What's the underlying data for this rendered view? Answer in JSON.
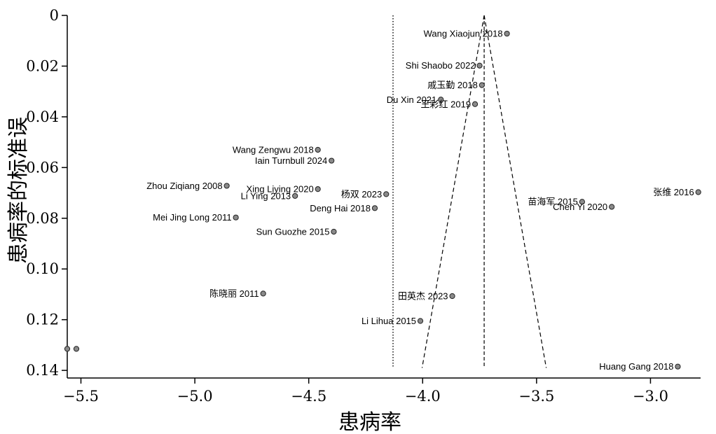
{
  "chart_data": {
    "type": "scatter",
    "title": "",
    "xlabel": "患病率",
    "ylabel": "患病率的标准误",
    "xlim": [
      -5.56,
      -2.78
    ],
    "ylim": [
      0,
      0.143
    ],
    "y_reversed": true,
    "grid": false,
    "x_ticks": [
      -5.5,
      -5.0,
      -4.5,
      -4.0,
      -3.5,
      -3.0
    ],
    "x_tick_labels": [
      "−5.5",
      "−5.0",
      "−4.5",
      "−4.0",
      "−3.5",
      "−3.0"
    ],
    "y_ticks": [
      0,
      0.02,
      0.04,
      0.06,
      0.08,
      0.1,
      0.12,
      0.14
    ],
    "y_tick_labels": [
      "0",
      "0.02",
      "0.04",
      "0.06",
      "0.08",
      "0.10",
      "0.12",
      "0.14"
    ],
    "fixed_effect_line": -4.13,
    "pooled_estimate": -3.73,
    "funnel_bottom_se": 0.139,
    "points": [
      {
        "label": "Wang Xiaojun 2018",
        "x": -3.63,
        "y": 0.0072
      },
      {
        "label": "Shi Shaobo 2022",
        "x": -3.75,
        "y": 0.0198
      },
      {
        "label": "戚玉勤 2018",
        "x": -3.74,
        "y": 0.0275
      },
      {
        "label": "Du Xin 2021",
        "x": -3.92,
        "y": 0.0332
      },
      {
        "label": "王彩红 2019",
        "x": -3.77,
        "y": 0.035
      },
      {
        "label": "Wang Zengwu 2018",
        "x": -4.46,
        "y": 0.053
      },
      {
        "label": "Iain Turnbull 2024",
        "x": -4.4,
        "y": 0.0573
      },
      {
        "label": "Zhou Ziqiang 2008",
        "x": -4.86,
        "y": 0.0672
      },
      {
        "label": "Xing Liying 2020",
        "x": -4.46,
        "y": 0.0685
      },
      {
        "label": "Li Ying 2013",
        "x": -4.56,
        "y": 0.0712
      },
      {
        "label": "杨双 2023",
        "x": -4.16,
        "y": 0.0705
      },
      {
        "label": "Deng Hai 2018",
        "x": -4.21,
        "y": 0.076
      },
      {
        "label": "苗海军 2015",
        "x": -3.3,
        "y": 0.0735
      },
      {
        "label": "Chen Yi 2020",
        "x": -3.17,
        "y": 0.0755
      },
      {
        "label": "张维 2016",
        "x": -2.79,
        "y": 0.0697
      },
      {
        "label": "Mei Jing Long 2011",
        "x": -4.82,
        "y": 0.0797
      },
      {
        "label": "Sun Guozhe 2015",
        "x": -4.39,
        "y": 0.0853
      },
      {
        "label": "陈晓丽 2011",
        "x": -4.7,
        "y": 0.1097
      },
      {
        "label": "田英杰 2023",
        "x": -3.87,
        "y": 0.1107
      },
      {
        "label": "Li Lihua 2015",
        "x": -4.01,
        "y": 0.1205
      },
      {
        "label": "",
        "x": -5.52,
        "y": 0.1315
      },
      {
        "label": "",
        "x": -5.56,
        "y": 0.1315
      },
      {
        "label": "Huang Gang 2018",
        "x": -2.88,
        "y": 0.1385
      }
    ]
  }
}
